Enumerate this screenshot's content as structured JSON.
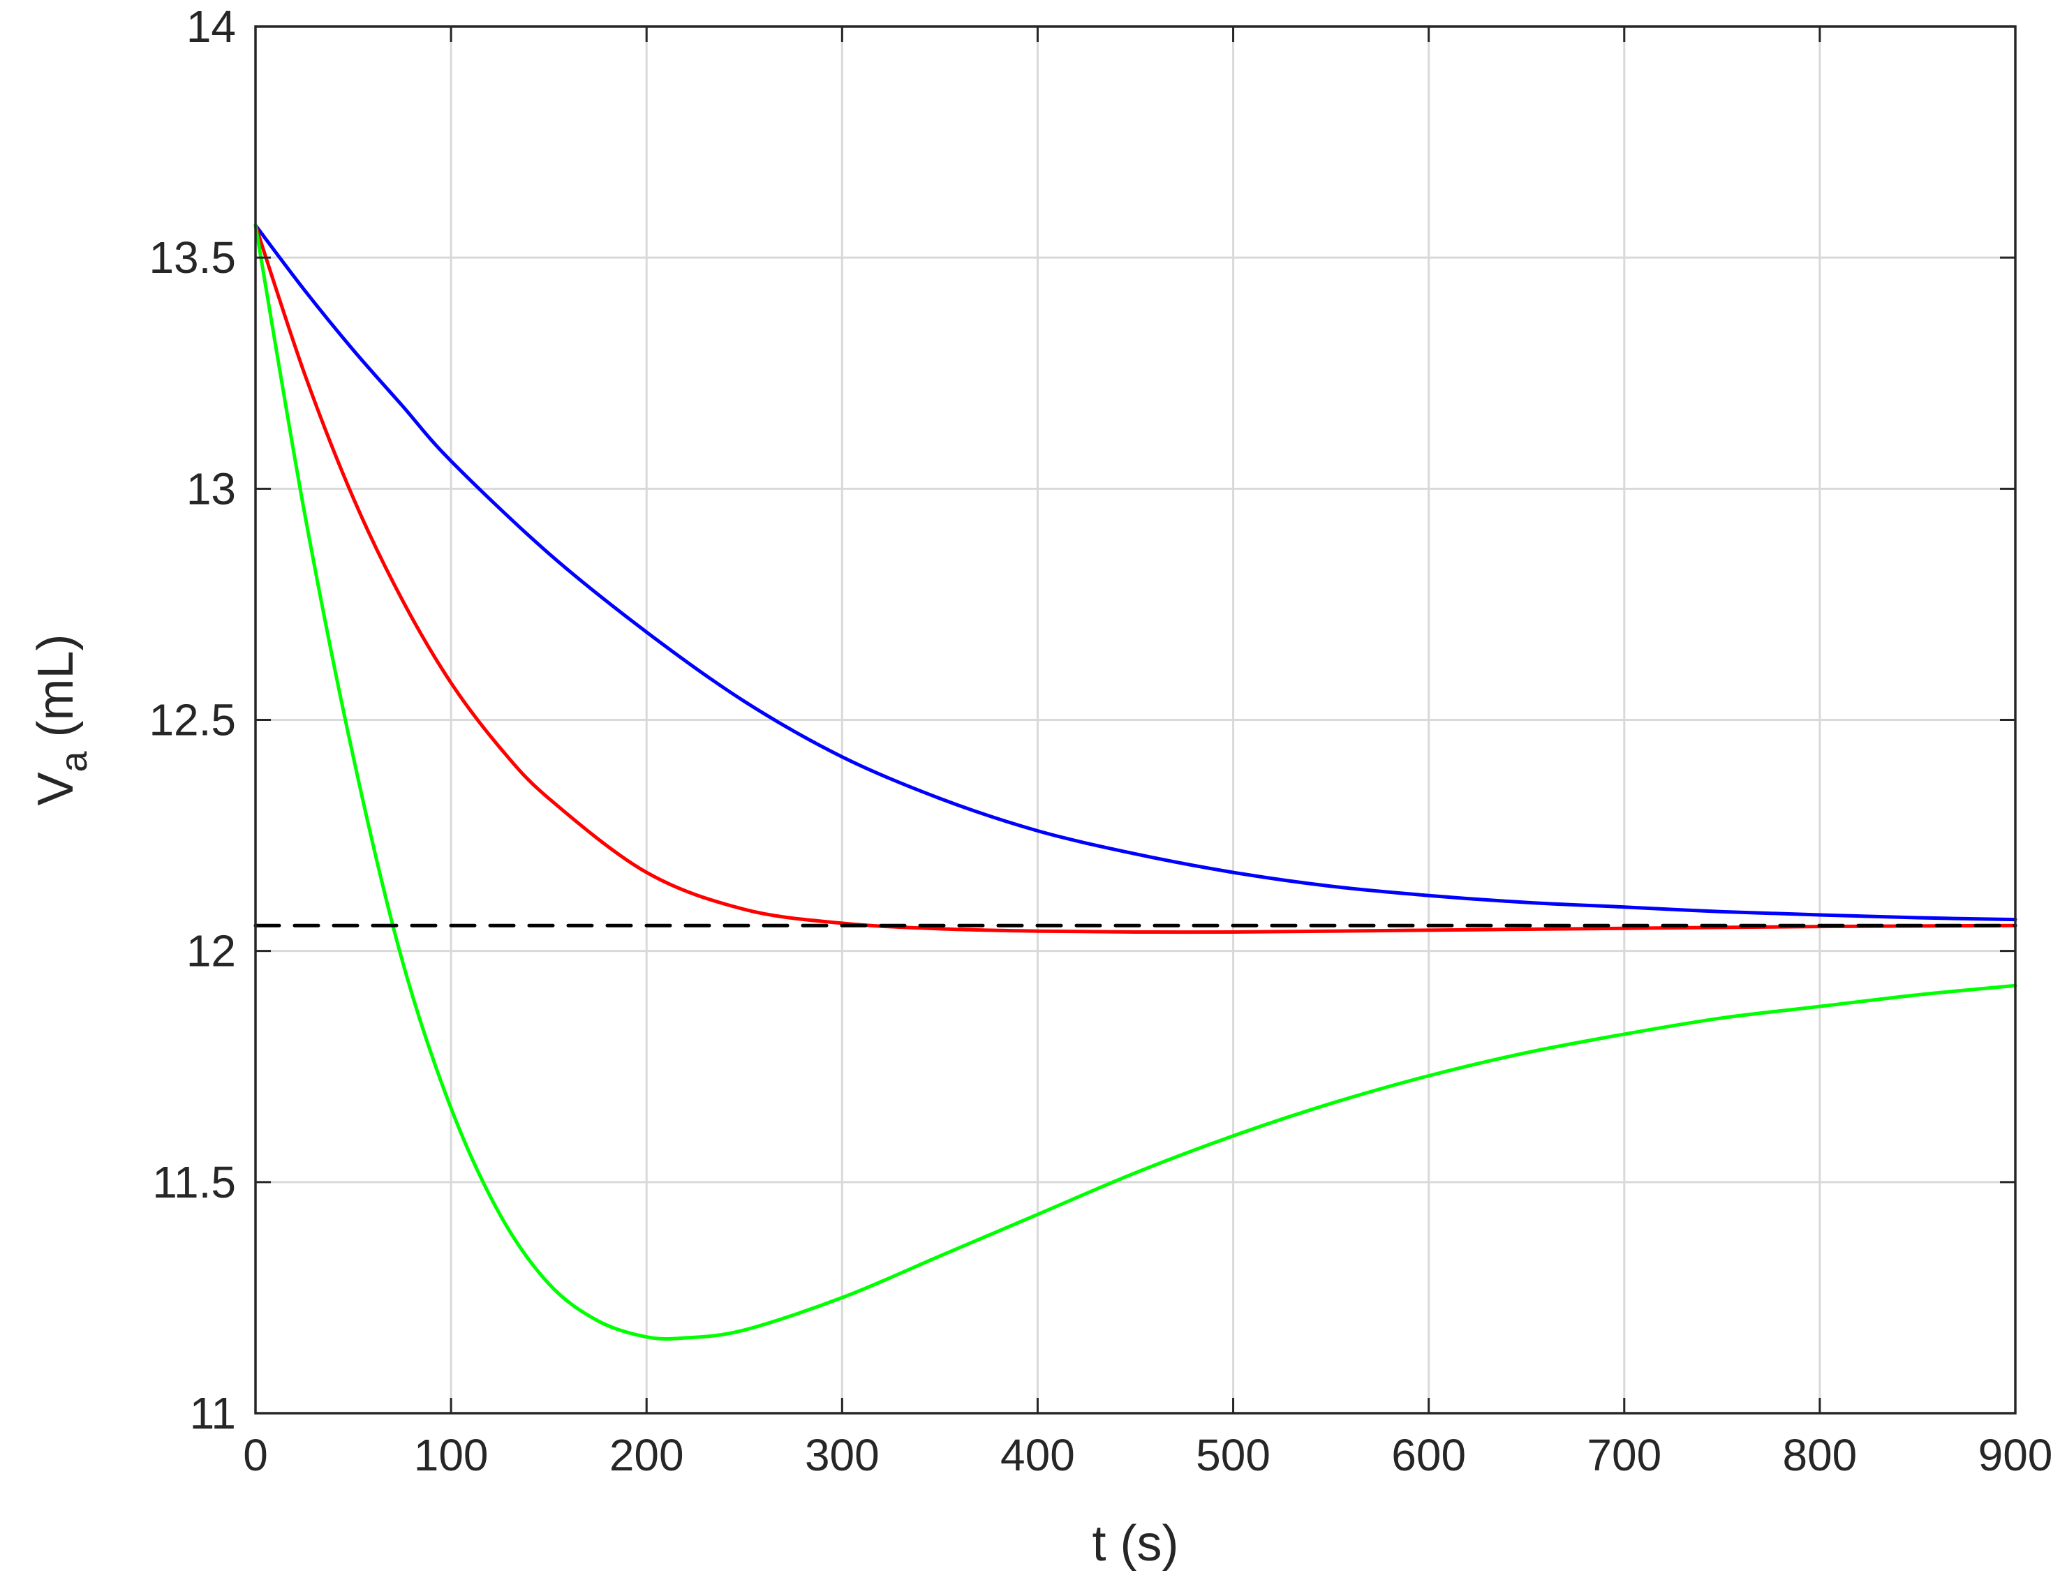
{
  "chart_data": {
    "type": "line",
    "xlabel": "t (s)",
    "ylabel": {
      "main": "V",
      "subscript": "a",
      "unit": " (mL)"
    },
    "xlim": [
      0,
      900
    ],
    "ylim": [
      11,
      14
    ],
    "xticks": [
      0,
      100,
      200,
      300,
      400,
      500,
      600,
      700,
      800,
      900
    ],
    "xtick_labels": [
      "0",
      "100",
      "200",
      "300",
      "400",
      "500",
      "600",
      "700",
      "800",
      "900"
    ],
    "yticks": [
      11,
      11.5,
      12,
      12.5,
      13,
      13.5,
      14
    ],
    "ytick_labels": [
      "11",
      "11.5",
      "12",
      "12.5",
      "13",
      "13.5",
      "14"
    ],
    "grid": true,
    "series": [
      {
        "color": "#0000ff",
        "style": "solid",
        "x": [
          0,
          25,
          50,
          75,
          100,
          150,
          200,
          250,
          300,
          350,
          400,
          450,
          500,
          550,
          600,
          650,
          700,
          750,
          800,
          850,
          900
        ],
        "y": [
          13.57,
          13.43,
          13.3,
          13.18,
          13.06,
          12.86,
          12.69,
          12.54,
          12.42,
          12.33,
          12.26,
          12.21,
          12.17,
          12.14,
          12.12,
          12.105,
          12.095,
          12.085,
          12.078,
          12.072,
          12.068
        ]
      },
      {
        "color": "#ff0000",
        "style": "solid",
        "x": [
          0,
          25,
          50,
          75,
          100,
          125,
          150,
          200,
          250,
          300,
          350,
          400,
          450,
          500,
          550,
          600,
          650,
          700,
          750,
          800,
          850,
          900
        ],
        "y": [
          13.57,
          13.25,
          12.98,
          12.76,
          12.58,
          12.44,
          12.33,
          12.17,
          12.09,
          12.06,
          12.048,
          12.043,
          12.041,
          12.041,
          12.043,
          12.045,
          12.047,
          12.049,
          12.051,
          12.053,
          12.054,
          12.055
        ]
      },
      {
        "color": "#00ff00",
        "style": "solid",
        "x": [
          0,
          25,
          50,
          75,
          100,
          125,
          150,
          175,
          200,
          220,
          250,
          300,
          350,
          400,
          450,
          500,
          550,
          600,
          650,
          700,
          750,
          800,
          850,
          900
        ],
        "y": [
          13.57,
          12.95,
          12.42,
          11.98,
          11.66,
          11.43,
          11.28,
          11.2,
          11.165,
          11.163,
          11.18,
          11.25,
          11.34,
          11.43,
          11.52,
          11.6,
          11.67,
          11.73,
          11.78,
          11.82,
          11.855,
          11.88,
          11.905,
          11.925
        ]
      },
      {
        "color": "#000000",
        "style": "dashed",
        "x": [
          0,
          900
        ],
        "y": [
          12.055,
          12.055
        ]
      }
    ]
  }
}
